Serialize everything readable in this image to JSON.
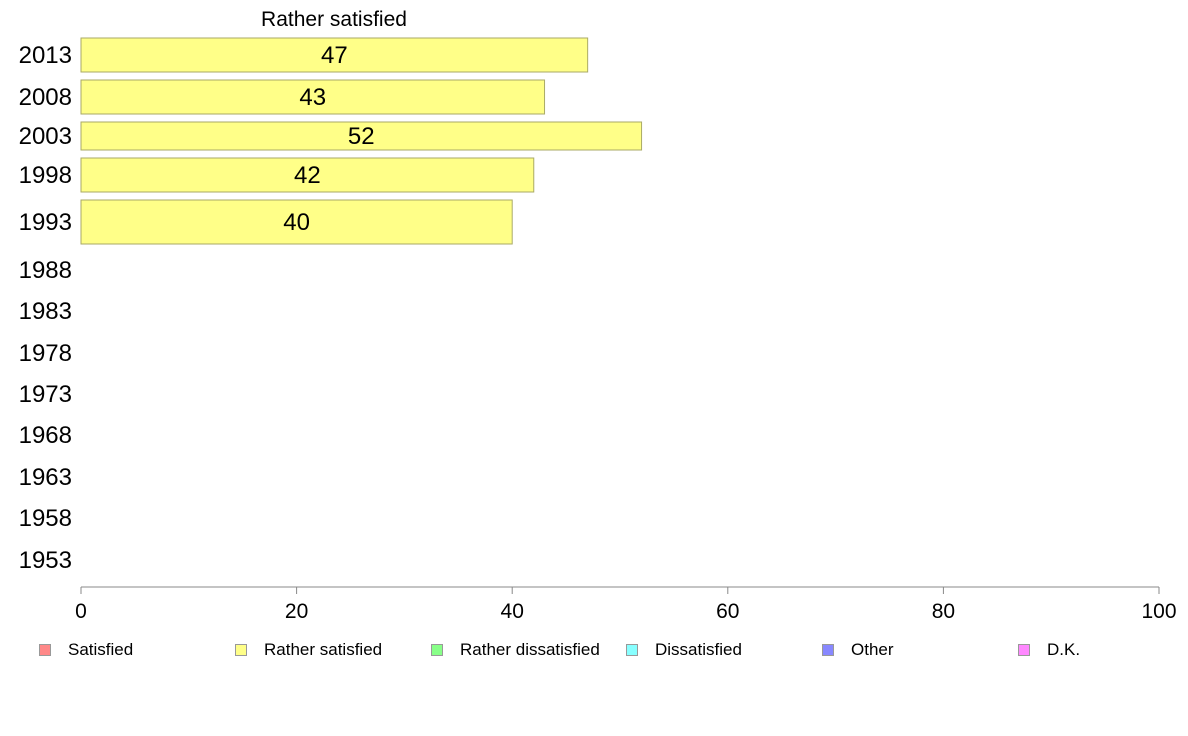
{
  "chart_data": {
    "type": "bar",
    "orientation": "horizontal",
    "title": "Rather satisfied",
    "categories": [
      "2013",
      "2008",
      "2003",
      "1998",
      "1993",
      "1988",
      "1983",
      "1978",
      "1973",
      "1968",
      "1963",
      "1958",
      "1953"
    ],
    "series": [
      {
        "name": "Rather satisfied",
        "values": [
          47,
          43,
          52,
          42,
          40,
          null,
          null,
          null,
          null,
          null,
          null,
          null,
          null
        ],
        "color": "#ffff88"
      }
    ],
    "xlim": [
      0,
      100
    ],
    "xticks": [
      "0",
      "20",
      "40",
      "60",
      "80",
      "100"
    ],
    "grid": false,
    "legend": {
      "placement": "bottom",
      "items": [
        {
          "label": "Satisfied",
          "color": "#ff8888"
        },
        {
          "label": "Rather satisfied",
          "color": "#ffff88"
        },
        {
          "label": "Rather dissatisfied",
          "color": "#88ff88"
        },
        {
          "label": "Dissatisfied",
          "color": "#88ffff"
        },
        {
          "label": "Other",
          "color": "#8888ff"
        },
        {
          "label": "D.K.",
          "color": "#ff88ff"
        }
      ]
    }
  }
}
